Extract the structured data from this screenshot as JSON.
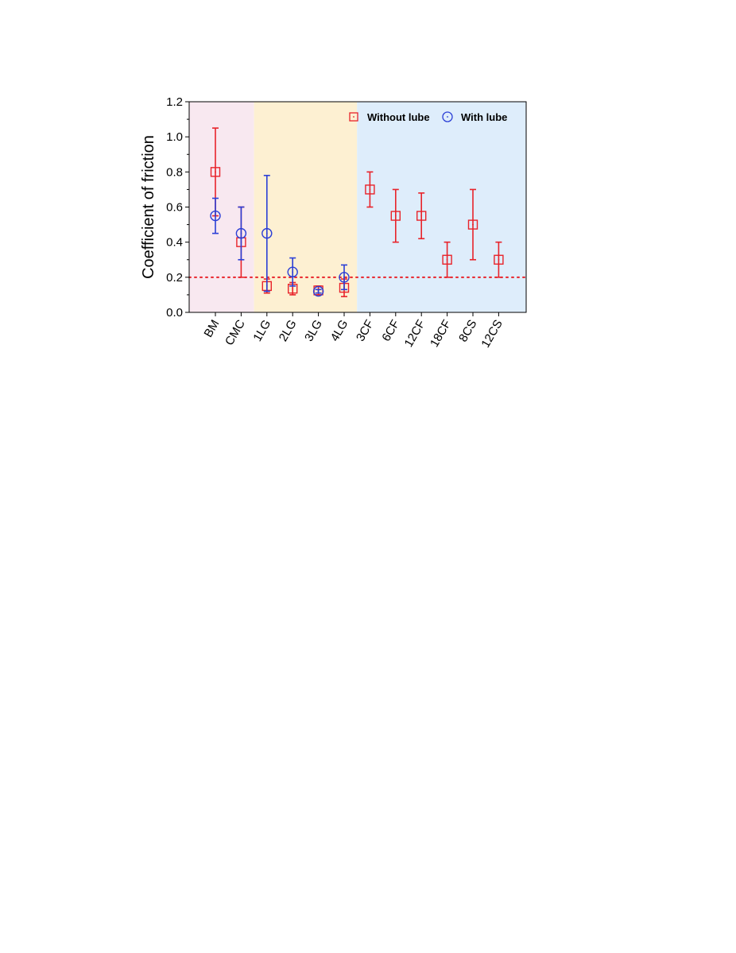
{
  "chart_data": {
    "type": "scatter",
    "title": "",
    "xlabel": "",
    "ylabel": "Coefficient of friction",
    "ylim": [
      0.0,
      1.2
    ],
    "yticks": [
      "0.0",
      "0.2",
      "0.4",
      "0.6",
      "0.8",
      "1.0",
      "1.2"
    ],
    "categories": [
      "BM",
      "CMC",
      "1LG",
      "2LG",
      "3LG",
      "4LG",
      "3CF",
      "6CF",
      "12CF",
      "18CF",
      "8CS",
      "12CS"
    ],
    "reference_line": {
      "y": 0.2,
      "style": "dotted",
      "color": "#e8232a"
    },
    "background_regions": [
      {
        "from": "BM",
        "to": "CMC",
        "color": "#f8e8f0"
      },
      {
        "from": "1LG",
        "to": "4LG",
        "color": "#fdf0d2"
      },
      {
        "from": "3CF",
        "to": "12CS",
        "color": "#deedfb"
      }
    ],
    "legend_position": "top-right",
    "series": [
      {
        "name": "Without lube",
        "marker": "square",
        "color": "#e8232a",
        "points": [
          {
            "x": "BM",
            "y": 0.8,
            "lo": 0.55,
            "hi": 1.05
          },
          {
            "x": "CMC",
            "y": 0.4,
            "lo": 0.2,
            "hi": 0.6
          },
          {
            "x": "1LG",
            "y": 0.15,
            "lo": 0.11,
            "hi": 0.19
          },
          {
            "x": "2LG",
            "y": 0.135,
            "lo": 0.1,
            "hi": 0.17
          },
          {
            "x": "3LG",
            "y": 0.125,
            "lo": 0.1,
            "hi": 0.15
          },
          {
            "x": "4LG",
            "y": 0.14,
            "lo": 0.09,
            "hi": 0.19
          },
          {
            "x": "3CF",
            "y": 0.7,
            "lo": 0.6,
            "hi": 0.8
          },
          {
            "x": "6CF",
            "y": 0.55,
            "lo": 0.4,
            "hi": 0.7
          },
          {
            "x": "12CF",
            "y": 0.55,
            "lo": 0.42,
            "hi": 0.68
          },
          {
            "x": "18CF",
            "y": 0.3,
            "lo": 0.2,
            "hi": 0.4
          },
          {
            "x": "8CS",
            "y": 0.5,
            "lo": 0.3,
            "hi": 0.7
          },
          {
            "x": "12CS",
            "y": 0.3,
            "lo": 0.2,
            "hi": 0.4
          }
        ]
      },
      {
        "name": "With lube",
        "marker": "circle",
        "color": "#2b3fd6",
        "points": [
          {
            "x": "BM",
            "y": 0.55,
            "lo": 0.45,
            "hi": 0.65
          },
          {
            "x": "CMC",
            "y": 0.45,
            "lo": 0.3,
            "hi": 0.6
          },
          {
            "x": "1LG",
            "y": 0.45,
            "lo": 0.12,
            "hi": 0.78
          },
          {
            "x": "2LG",
            "y": 0.23,
            "lo": 0.15,
            "hi": 0.31
          },
          {
            "x": "3LG",
            "y": 0.12,
            "lo": 0.11,
            "hi": 0.13
          },
          {
            "x": "4LG",
            "y": 0.2,
            "lo": 0.13,
            "hi": 0.27
          }
        ]
      }
    ]
  }
}
